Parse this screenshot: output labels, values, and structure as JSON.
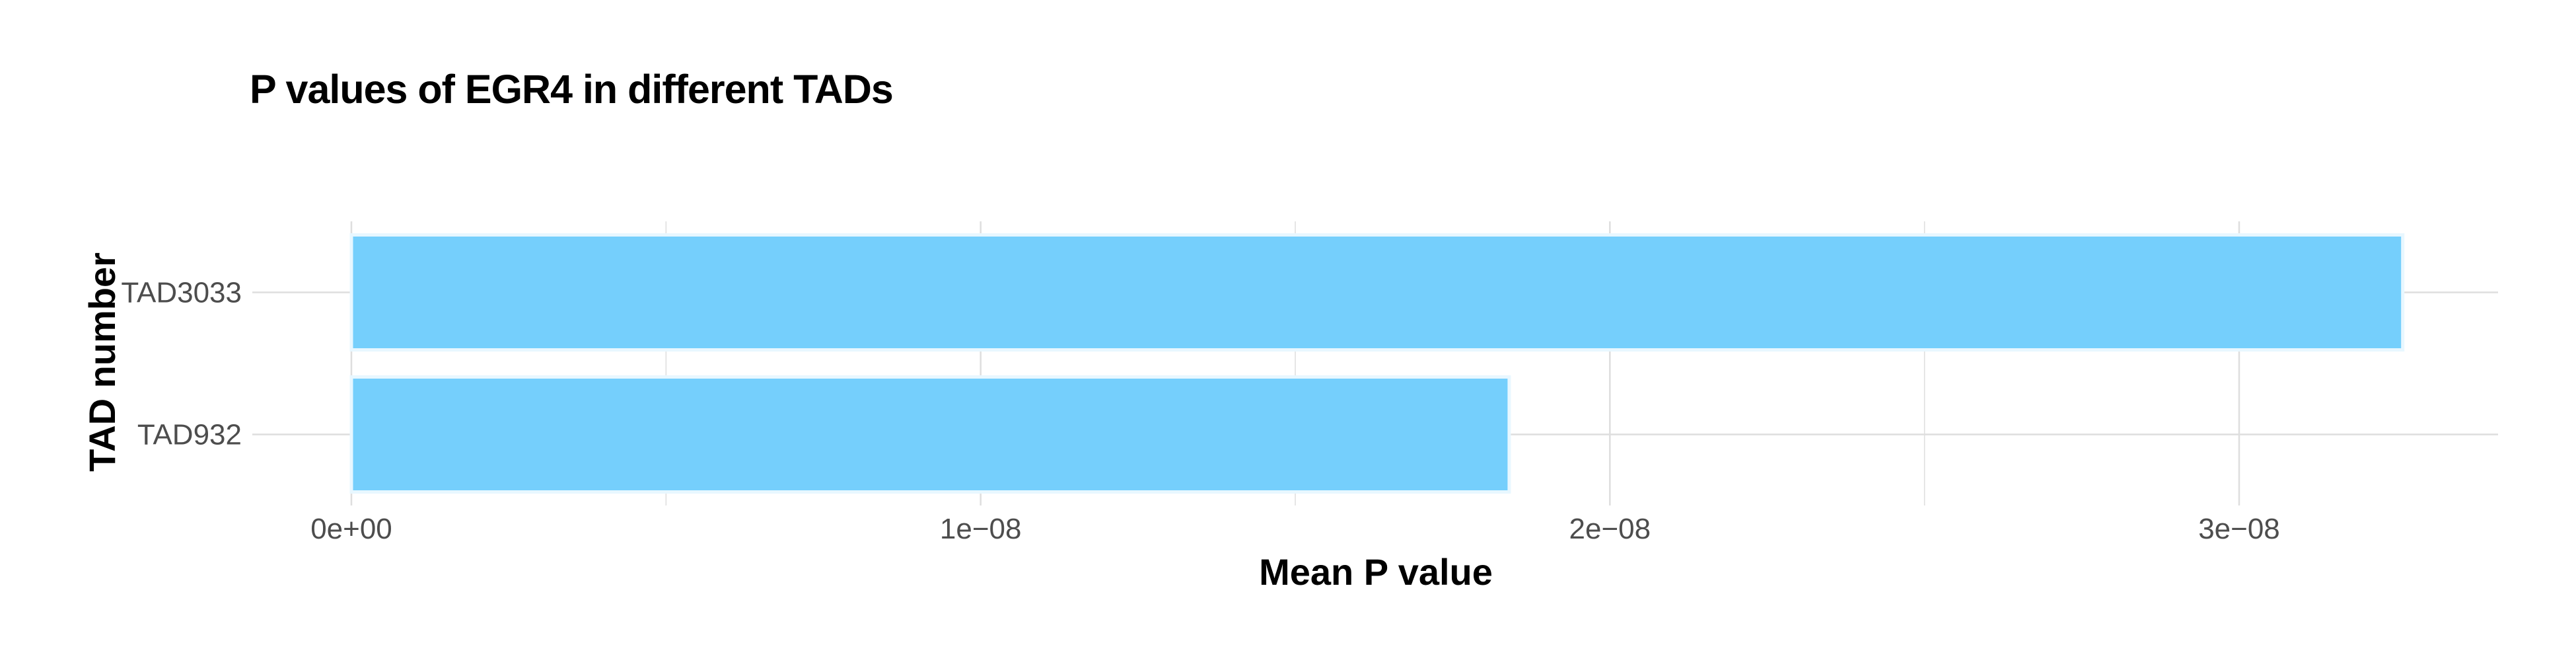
{
  "chart_data": {
    "type": "bar",
    "orientation": "horizontal",
    "title": "P values of EGR4 in different TADs",
    "xlabel": "Mean P value",
    "ylabel": "TAD number",
    "categories": [
      "TAD932",
      "TAD3033"
    ],
    "values": [
      1.84e-08,
      3.26e-08
    ],
    "xlim": [
      0,
      3.42e-08
    ],
    "x_ticks": [
      0,
      1e-08,
      2e-08,
      3e-08
    ],
    "x_tick_labels": [
      "0e+00",
      "1e−08",
      "2e−08",
      "3e−08"
    ],
    "grid": true,
    "legend": "none",
    "bar_color": "#75CFFC",
    "bar_outline_color": "#E8F7FF",
    "grid_color": "#DEDEDE"
  }
}
